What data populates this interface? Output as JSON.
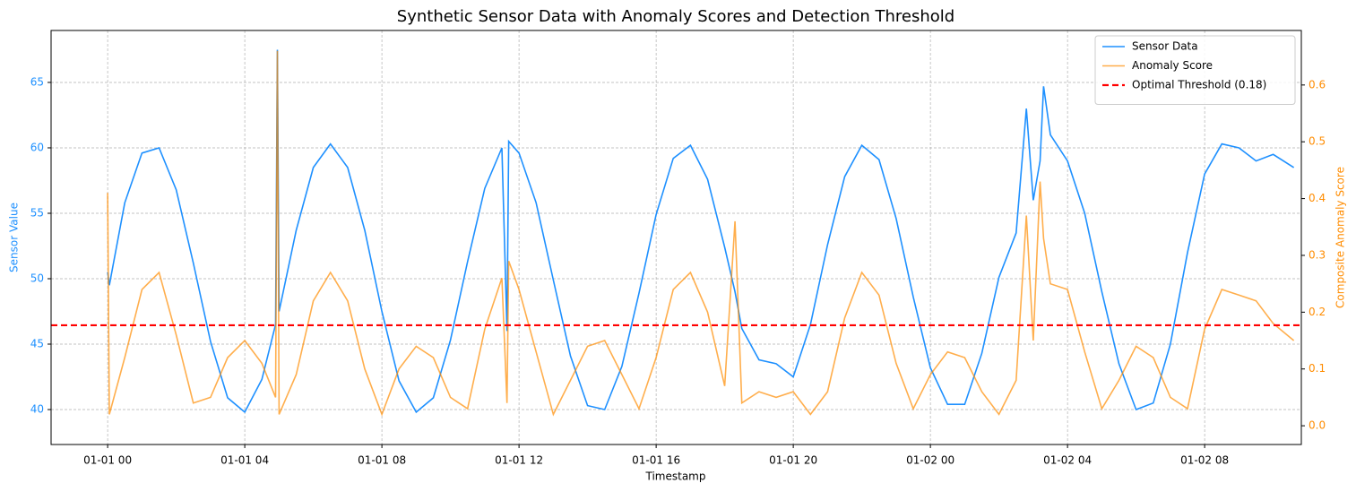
{
  "chart_data": {
    "type": "line",
    "title": "Synthetic Sensor Data with Anomaly Scores and Detection Threshold",
    "x_label": "Timestamp",
    "y_label": "Sensor Value",
    "y2_label": "Composite Anomaly Score",
    "x": [
      0,
      0.05,
      0.5,
      1,
      1.5,
      2,
      2.5,
      3,
      3.5,
      4,
      4.5,
      4.9,
      4.95,
      5,
      5.5,
      6,
      6.5,
      7,
      7.5,
      8,
      8.5,
      9,
      9.5,
      10,
      10.5,
      11,
      11.5,
      11.65,
      11.7,
      12,
      12.5,
      13,
      13.5,
      14,
      14.5,
      15,
      15.5,
      16,
      16.5,
      17,
      17.5,
      18,
      18.3,
      18.5,
      19,
      19.5,
      20,
      20.5,
      21,
      21.5,
      22,
      22.5,
      23,
      23.5,
      24,
      24.5,
      25,
      25.5,
      26,
      26.5,
      26.8,
      27,
      27.2,
      27.3,
      27.5,
      28,
      28.5,
      29,
      29.5,
      30,
      30.5,
      31,
      31.5,
      32,
      32.5,
      33,
      33.5,
      34,
      34.6
    ],
    "series": [
      {
        "name": "Sensor Data",
        "color": "#1e90ff",
        "axis": "y",
        "values": [
          50.5,
          49.5,
          55.8,
          59.6,
          60.0,
          56.8,
          51.2,
          45.2,
          40.9,
          39.8,
          42.3,
          46.5,
          67.5,
          47.5,
          53.7,
          58.5,
          60.3,
          58.5,
          53.7,
          47.5,
          42.2,
          39.8,
          40.9,
          45.3,
          51.3,
          56.9,
          60.0,
          46.0,
          60.5,
          59.6,
          55.8,
          49.9,
          44.1,
          40.3,
          40.0,
          43.3,
          48.9,
          54.9,
          59.2,
          60.2,
          57.6,
          52.4,
          49.0,
          46.2,
          43.8,
          43.5,
          42.5,
          46.5,
          52.6,
          57.8,
          60.2,
          59.1,
          54.6,
          48.6,
          43.2,
          40.4,
          40.4,
          44.3,
          50.1,
          53.5,
          63.0,
          56.0,
          59.0,
          64.7,
          61.0,
          59.0,
          55.0,
          49.0,
          43.5,
          40.0,
          40.5,
          45.0,
          52.0,
          58.0,
          60.3,
          60.0,
          59.0,
          59.5,
          58.5
        ]
      },
      {
        "name": "Anomaly Score",
        "color": "#ff8c00",
        "axis": "y2",
        "values": [
          0.41,
          0.02,
          0.12,
          0.24,
          0.27,
          0.16,
          0.04,
          0.05,
          0.12,
          0.15,
          0.11,
          0.05,
          0.66,
          0.02,
          0.09,
          0.22,
          0.27,
          0.22,
          0.1,
          0.02,
          0.1,
          0.14,
          0.12,
          0.05,
          0.03,
          0.17,
          0.26,
          0.04,
          0.29,
          0.24,
          0.13,
          0.02,
          0.08,
          0.14,
          0.15,
          0.09,
          0.03,
          0.12,
          0.24,
          0.27,
          0.2,
          0.07,
          0.36,
          0.04,
          0.06,
          0.05,
          0.06,
          0.02,
          0.06,
          0.19,
          0.27,
          0.23,
          0.11,
          0.03,
          0.09,
          0.13,
          0.12,
          0.06,
          0.02,
          0.08,
          0.37,
          0.15,
          0.43,
          0.33,
          0.25,
          0.24,
          0.13,
          0.03,
          0.08,
          0.14,
          0.12,
          0.05,
          0.03,
          0.17,
          0.24,
          0.23,
          0.22,
          0.18,
          0.15
        ]
      }
    ],
    "threshold": {
      "name": "Optimal Threshold (0.18)",
      "value": 0.177,
      "color": "#ff0000",
      "axis": "y2"
    },
    "xlim": [
      -1.65,
      34.82
    ],
    "xticks": [
      {
        "value": 0,
        "label": "01-01 00"
      },
      {
        "value": 4,
        "label": "01-01 04"
      },
      {
        "value": 8,
        "label": "01-01 08"
      },
      {
        "value": 12,
        "label": "01-01 12"
      },
      {
        "value": 16,
        "label": "01-01 16"
      },
      {
        "value": 20,
        "label": "01-01 20"
      },
      {
        "value": 24,
        "label": "01-02 00"
      },
      {
        "value": 28,
        "label": "01-02 04"
      },
      {
        "value": 32,
        "label": "01-02 08"
      }
    ],
    "ylim": [
      37.33,
      68.97
    ],
    "yticks": [
      40,
      45,
      50,
      55,
      60,
      65
    ],
    "y2lim": [
      -0.033,
      0.696
    ],
    "y2ticks": [
      {
        "value": 0,
        "label": "0.0"
      },
      0.1,
      0.2,
      0.3,
      0.4,
      0.5,
      0.6
    ],
    "grid": true,
    "legend": "upper right"
  }
}
